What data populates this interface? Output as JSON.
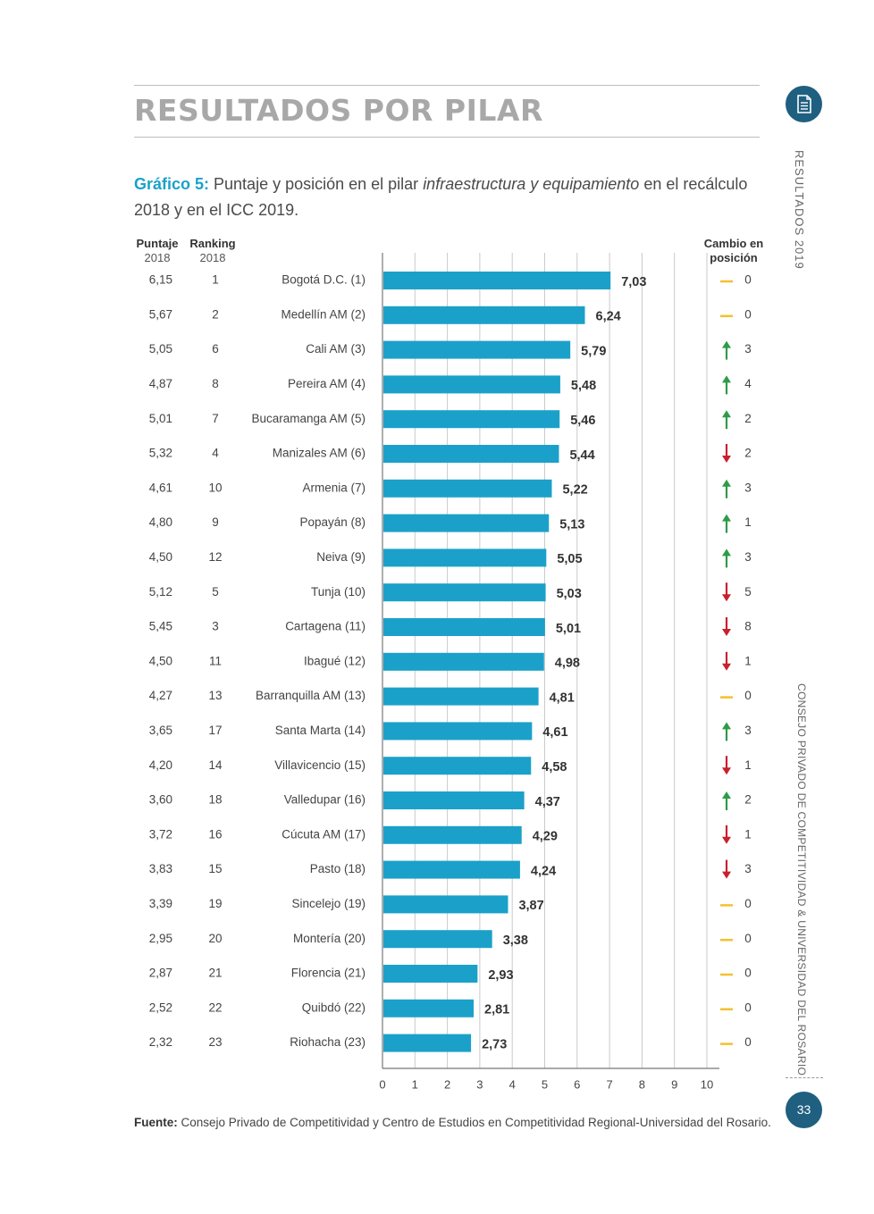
{
  "header": {
    "section_title": "RESULTADOS POR PILAR",
    "side_top": "RESULTADOS 2019",
    "side_bottom": "CONSEJO PRIVADO DE COMPETITIVIDAD & UNIVERSIDAD DEL ROSARIO",
    "icon": "document-icon"
  },
  "caption": {
    "label": "Gráfico 5:",
    "text_before": " Puntaje y posición en el pilar ",
    "text_italic": "infraestructura y equipamiento",
    "text_after": " en el recálculo 2018 y en el ICC 2019."
  },
  "columns": {
    "puntaje_title": "Puntaje",
    "puntaje_year": "2018",
    "ranking_title": "Ranking",
    "ranking_year": "2018",
    "cambio_line1": "Cambio en",
    "cambio_line2": "posición"
  },
  "colors": {
    "bar": "#1ba1c9",
    "up": "#2e9b48",
    "down": "#c8202f",
    "same": "#f2c12e",
    "accent": "#1f5f80"
  },
  "chart_data": {
    "type": "bar",
    "orientation": "horizontal",
    "categories": [
      "Bogotá D.C. (1)",
      "Medellín AM (2)",
      "Cali AM (3)",
      "Pereira AM (4)",
      "Bucaramanga AM (5)",
      "Manizales AM (6)",
      "Armenia (7)",
      "Popayán (8)",
      "Neiva (9)",
      "Tunja (10)",
      "Cartagena (11)",
      "Ibagué (12)",
      "Barranquilla AM (13)",
      "Santa Marta (14)",
      "Villavicencio (15)",
      "Valledupar (16)",
      "Cúcuta AM (17)",
      "Pasto (18)",
      "Sincelejo (19)",
      "Montería (20)",
      "Florencia (21)",
      "Quibdó (22)",
      "Riohacha (23)"
    ],
    "values": [
      7.03,
      6.24,
      5.79,
      5.48,
      5.46,
      5.44,
      5.22,
      5.13,
      5.05,
      5.03,
      5.01,
      4.98,
      4.81,
      4.61,
      4.58,
      4.37,
      4.29,
      4.24,
      3.87,
      3.38,
      2.93,
      2.81,
      2.73
    ],
    "value_labels": [
      "7,03",
      "6,24",
      "5,79",
      "5,48",
      "5,46",
      "5,44",
      "5,22",
      "5,13",
      "5,05",
      "5,03",
      "5,01",
      "4,98",
      "4,81",
      "4,61",
      "4,58",
      "4,37",
      "4,29",
      "4,24",
      "3,87",
      "3,38",
      "2,93",
      "2,81",
      "2,73"
    ],
    "puntaje_2018": [
      "6,15",
      "5,67",
      "5,05",
      "4,87",
      "5,01",
      "5,32",
      "4,61",
      "4,80",
      "4,50",
      "5,12",
      "5,45",
      "4,50",
      "4,27",
      "3,65",
      "4,20",
      "3,60",
      "3,72",
      "3,83",
      "3,39",
      "2,95",
      "2,87",
      "2,52",
      "2,32"
    ],
    "ranking_2018": [
      "1",
      "2",
      "6",
      "8",
      "7",
      "4",
      "10",
      "9",
      "12",
      "5",
      "3",
      "11",
      "13",
      "17",
      "14",
      "18",
      "16",
      "15",
      "19",
      "20",
      "21",
      "22",
      "23"
    ],
    "change_direction": [
      "same",
      "same",
      "up",
      "up",
      "up",
      "down",
      "up",
      "up",
      "up",
      "down",
      "down",
      "down",
      "same",
      "up",
      "down",
      "up",
      "down",
      "down",
      "same",
      "same",
      "same",
      "same",
      "same"
    ],
    "change_value": [
      "0",
      "0",
      "3",
      "4",
      "2",
      "2",
      "3",
      "1",
      "3",
      "5",
      "8",
      "1",
      "0",
      "3",
      "1",
      "2",
      "1",
      "3",
      "0",
      "0",
      "0",
      "0",
      "0"
    ],
    "xlim": [
      0,
      10
    ],
    "x_ticks": [
      "0",
      "1",
      "2",
      "3",
      "4",
      "5",
      "6",
      "7",
      "8",
      "9",
      "10"
    ],
    "grid": true
  },
  "footnote": {
    "label": "Fuente:",
    "text": " Consejo Privado de Competitividad y Centro de Estudios en Competitividad Regional-Universidad del Rosario."
  },
  "page_number": "33"
}
